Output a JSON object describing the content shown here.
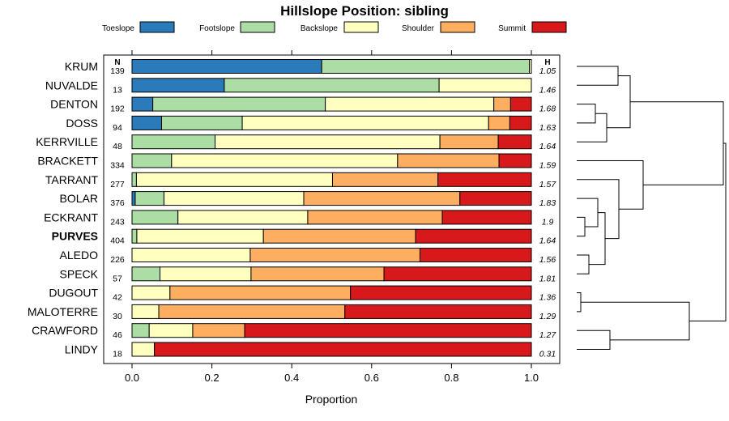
{
  "chart_data": {
    "type": "bar",
    "orientation": "horizontal-stacked",
    "title": "Hillslope Position: sibling",
    "xlabel": "Proportion",
    "xlim": [
      0,
      1
    ],
    "xticks": [
      "0.0",
      "0.2",
      "0.4",
      "0.6",
      "0.8",
      "1.0"
    ],
    "n_header": "N",
    "h_header": "H",
    "highlight": "PURVES",
    "legend": [
      {
        "name": "Toeslope",
        "color": "#2b7bba"
      },
      {
        "name": "Footslope",
        "color": "#abdda4"
      },
      {
        "name": "Backslope",
        "color": "#ffffbf"
      },
      {
        "name": "Shoulder",
        "color": "#fdae61"
      },
      {
        "name": "Summit",
        "color": "#d7191c"
      }
    ],
    "rows": [
      {
        "label": "KRUM",
        "n": "139",
        "h": "1.05",
        "values": [
          0.475,
          0.52,
          0.005,
          0,
          0
        ]
      },
      {
        "label": "NUVALDE",
        "n": "13",
        "h": "1.46",
        "values": [
          0.231,
          0.538,
          0.231,
          0,
          0
        ]
      },
      {
        "label": "DENTON",
        "n": "192",
        "h": "1.68",
        "values": [
          0.052,
          0.432,
          0.422,
          0.042,
          0.052
        ]
      },
      {
        "label": "DOSS",
        "n": "94",
        "h": "1.63",
        "values": [
          0.074,
          0.202,
          0.617,
          0.053,
          0.054
        ]
      },
      {
        "label": "KERRVILLE",
        "n": "48",
        "h": "1.64",
        "values": [
          0,
          0.208,
          0.563,
          0.146,
          0.083
        ]
      },
      {
        "label": "BRACKETT",
        "n": "334",
        "h": "1.59",
        "values": [
          0,
          0.099,
          0.566,
          0.254,
          0.081
        ]
      },
      {
        "label": "TARRANT",
        "n": "277",
        "h": "1.57",
        "values": [
          0,
          0.011,
          0.491,
          0.264,
          0.234
        ]
      },
      {
        "label": "BOLAR",
        "n": "376",
        "h": "1.83",
        "values": [
          0.008,
          0.072,
          0.35,
          0.391,
          0.179
        ]
      },
      {
        "label": "ECKRANT",
        "n": "243",
        "h": "1.9",
        "values": [
          0,
          0.115,
          0.325,
          0.337,
          0.223
        ]
      },
      {
        "label": "PURVES",
        "n": "404",
        "h": "1.64",
        "values": [
          0,
          0.012,
          0.317,
          0.381,
          0.29
        ]
      },
      {
        "label": "ALEDO",
        "n": "226",
        "h": "1.56",
        "values": [
          0,
          0,
          0.296,
          0.425,
          0.279
        ]
      },
      {
        "label": "SPECK",
        "n": "57",
        "h": "1.81",
        "values": [
          0,
          0.07,
          0.228,
          0.333,
          0.369
        ]
      },
      {
        "label": "DUGOUT",
        "n": "42",
        "h": "1.36",
        "values": [
          0,
          0,
          0.095,
          0.452,
          0.453
        ]
      },
      {
        "label": "MALOTERRE",
        "n": "30",
        "h": "1.29",
        "values": [
          0,
          0,
          0.067,
          0.466,
          0.467
        ]
      },
      {
        "label": "CRAWFORD",
        "n": "46",
        "h": "1.27",
        "values": [
          0,
          0.043,
          0.109,
          0.13,
          0.718
        ]
      },
      {
        "label": "LINDY",
        "n": "18",
        "h": "0.31",
        "values": [
          0,
          0,
          0.056,
          0,
          0.944
        ]
      }
    ]
  }
}
